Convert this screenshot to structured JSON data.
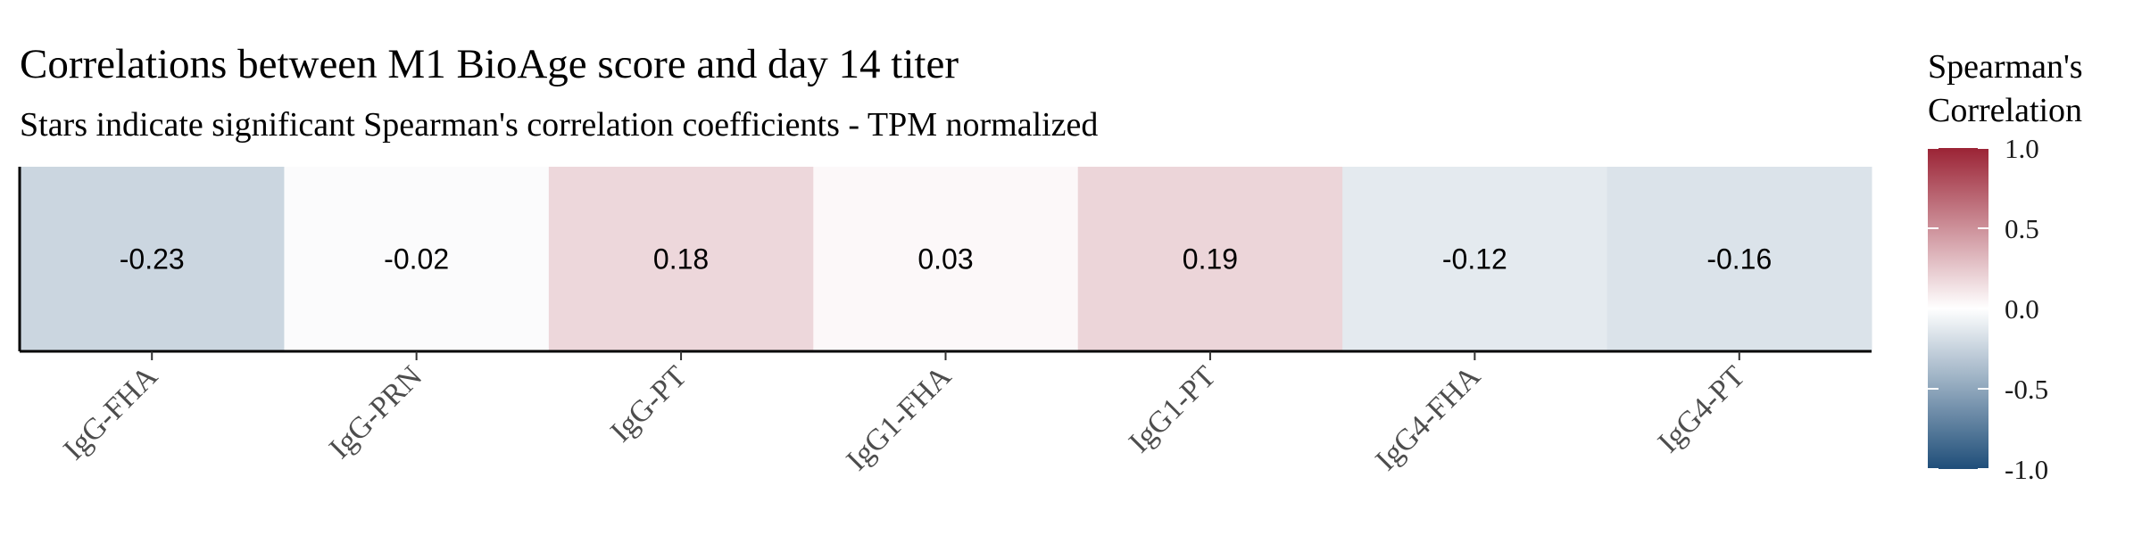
{
  "chart_data": {
    "type": "heatmap",
    "title": "Correlations between M1 BioAge score and day 14 titer",
    "subtitle": "Stars indicate significant Spearman's correlation coefficients - TPM normalized",
    "categories": [
      "IgG-FHA",
      "IgG-PRN",
      "IgG-PT",
      "IgG1-FHA",
      "IgG1-PT",
      "IgG4-FHA",
      "IgG4-PT"
    ],
    "values": [
      -0.23,
      -0.02,
      0.18,
      0.03,
      0.19,
      -0.12,
      -0.16
    ],
    "value_labels": [
      "-0.23",
      "-0.02",
      "0.18",
      "0.03",
      "0.19",
      "-0.12",
      "-0.16"
    ],
    "xlabel": "",
    "ylabel": "",
    "legend": {
      "title_lines": [
        "Spearman's",
        "Correlation"
      ],
      "ticks": [
        1.0,
        0.5,
        0.0,
        -0.5,
        -1.0
      ],
      "tick_labels": [
        "1.0",
        "0.5",
        "0.0",
        "-0.5",
        "-1.0"
      ],
      "range": [
        -1.0,
        1.0
      ],
      "placement": "right"
    },
    "colors": {
      "low": "#1f4e79",
      "mid": "#ffffff",
      "high": "#9b2335"
    }
  }
}
